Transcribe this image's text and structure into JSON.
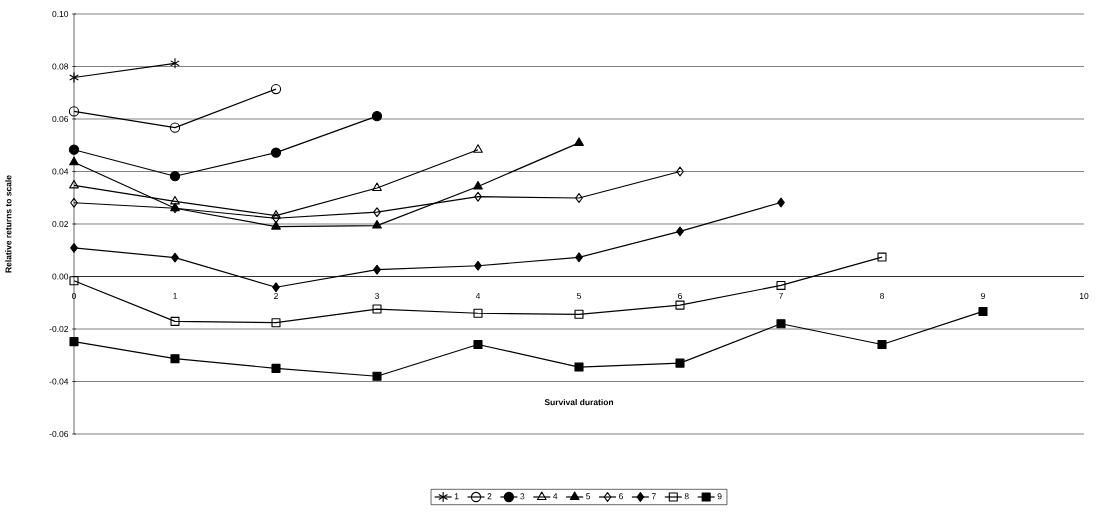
{
  "chart_data": {
    "type": "line",
    "xlabel": "Survival duration",
    "ylabel": "Relative returns to scale",
    "xlim": [
      0,
      10
    ],
    "xticks": [
      0,
      1,
      2,
      3,
      4,
      5,
      6,
      7,
      8,
      9,
      10
    ],
    "ylim": [
      -0.06,
      0.1
    ],
    "yticks": [
      {
        "value": -0.06,
        "label": "-0.06"
      },
      {
        "value": -0.04,
        "label": "-0.04"
      },
      {
        "value": -0.02,
        "label": "-0.02"
      },
      {
        "value": 0,
        "label": "0.00"
      },
      {
        "value": 0.02,
        "label": "0.02"
      },
      {
        "value": 0.04,
        "label": "0.04"
      },
      {
        "value": 0.06,
        "label": "0.06"
      },
      {
        "value": 0.08,
        "label": "0.08"
      },
      {
        "value": 0.1,
        "label": "0.10"
      }
    ],
    "grid": "y",
    "legend": "bottom",
    "series": [
      {
        "name": "1",
        "color": "#000000",
        "marker": "cross",
        "x": [
          0,
          1
        ],
        "values": [
          0.0758,
          0.0812
        ]
      },
      {
        "name": "2",
        "color": "#000000",
        "marker": "circle-open",
        "x": [
          0,
          1,
          2
        ],
        "values": [
          0.0629,
          0.0567,
          0.0714
        ]
      },
      {
        "name": "3",
        "color": "#000000",
        "marker": "circle",
        "x": [
          0,
          1,
          2,
          3
        ],
        "values": [
          0.0483,
          0.0382,
          0.0472,
          0.0611
        ]
      },
      {
        "name": "4",
        "color": "#000000",
        "marker": "triangle-open",
        "x": [
          0,
          1,
          2,
          3,
          4
        ],
        "values": [
          0.0347,
          0.0286,
          0.0232,
          0.0337,
          0.0483
        ]
      },
      {
        "name": "5",
        "color": "#000000",
        "marker": "triangle",
        "x": [
          0,
          1,
          2,
          3,
          4,
          5
        ],
        "values": [
          0.0435,
          0.026,
          0.019,
          0.0194,
          0.0343,
          0.0509
        ]
      },
      {
        "name": "6",
        "color": "#000000",
        "marker": "diamond-open",
        "x": [
          0,
          1,
          2,
          3,
          4,
          5,
          6
        ],
        "values": [
          0.0281,
          0.026,
          0.0222,
          0.0245,
          0.0304,
          0.0299,
          0.04
        ]
      },
      {
        "name": "7",
        "color": "#000000",
        "marker": "diamond",
        "x": [
          0,
          1,
          2,
          3,
          4,
          5,
          6,
          7
        ],
        "values": [
          0.0109,
          0.0072,
          -0.0041,
          0.0026,
          0.0041,
          0.0073,
          0.0172,
          0.0282
        ]
      },
      {
        "name": "8",
        "color": "#000000",
        "marker": "square-open",
        "x": [
          0,
          1,
          2,
          3,
          4,
          5,
          6,
          7,
          8
        ],
        "values": [
          -0.0016,
          -0.0171,
          -0.0176,
          -0.0124,
          -0.014,
          -0.0144,
          -0.0109,
          -0.0034,
          0.0074
        ]
      },
      {
        "name": "9",
        "color": "#000000",
        "marker": "square",
        "x": [
          0,
          1,
          2,
          3,
          4,
          5,
          6,
          7,
          8,
          9
        ],
        "values": [
          -0.0248,
          -0.0313,
          -0.035,
          -0.038,
          -0.0259,
          -0.0345,
          -0.033,
          -0.018,
          -0.0259,
          -0.0133
        ]
      }
    ]
  }
}
